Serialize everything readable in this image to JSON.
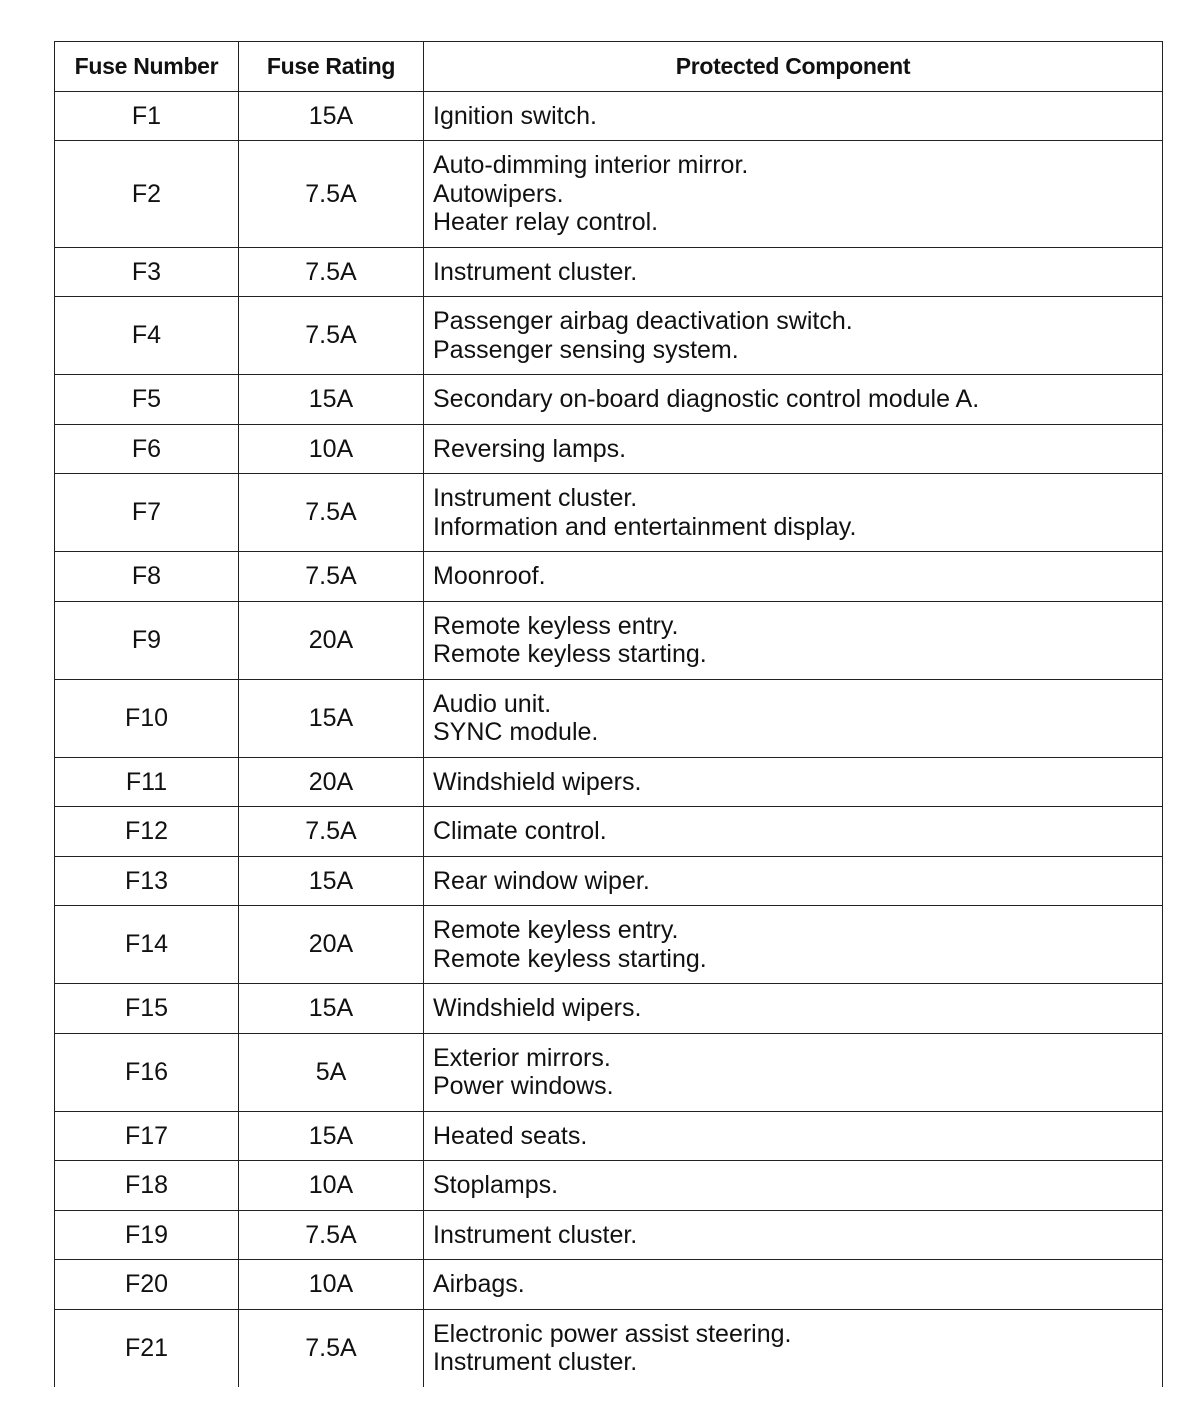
{
  "table": {
    "header": [
      "Fuse Number",
      "Fuse Rating",
      "Protected Component"
    ],
    "rows": [
      {
        "number": "F1",
        "rating": "15A",
        "component": [
          "Ignition switch."
        ]
      },
      {
        "number": "F2",
        "rating": "7.5A",
        "component": [
          "Auto-dimming interior mirror.",
          "Autowipers.",
          "Heater relay control."
        ]
      },
      {
        "number": "F3",
        "rating": "7.5A",
        "component": [
          "Instrument cluster."
        ]
      },
      {
        "number": "F4",
        "rating": "7.5A",
        "component": [
          "Passenger airbag deactivation switch.",
          "Passenger sensing system."
        ]
      },
      {
        "number": "F5",
        "rating": "15A",
        "component": [
          "Secondary on-board diagnostic control module A."
        ]
      },
      {
        "number": "F6",
        "rating": "10A",
        "component": [
          "Reversing lamps."
        ]
      },
      {
        "number": "F7",
        "rating": "7.5A",
        "component": [
          "Instrument cluster.",
          "Information and entertainment display."
        ]
      },
      {
        "number": "F8",
        "rating": "7.5A",
        "component": [
          "Moonroof."
        ]
      },
      {
        "number": "F9",
        "rating": "20A",
        "component": [
          "Remote keyless entry.",
          "Remote keyless starting."
        ]
      },
      {
        "number": "F10",
        "rating": "15A",
        "component": [
          "Audio unit.",
          "SYNC module."
        ]
      },
      {
        "number": "F11",
        "rating": "20A",
        "component": [
          "Windshield wipers."
        ]
      },
      {
        "number": "F12",
        "rating": "7.5A",
        "component": [
          "Climate control."
        ]
      },
      {
        "number": "F13",
        "rating": "15A",
        "component": [
          "Rear window wiper."
        ]
      },
      {
        "number": "F14",
        "rating": "20A",
        "component": [
          "Remote keyless entry.",
          "Remote keyless starting."
        ]
      },
      {
        "number": "F15",
        "rating": "15A",
        "component": [
          "Windshield wipers."
        ]
      },
      {
        "number": "F16",
        "rating": "5A",
        "component": [
          "Exterior mirrors.",
          "Power windows."
        ]
      },
      {
        "number": "F17",
        "rating": "15A",
        "component": [
          "Heated seats."
        ]
      },
      {
        "number": "F18",
        "rating": "10A",
        "component": [
          "Stoplamps."
        ]
      },
      {
        "number": "F19",
        "rating": "7.5A",
        "component": [
          "Instrument cluster."
        ]
      },
      {
        "number": "F20",
        "rating": "10A",
        "component": [
          "Airbags."
        ]
      },
      {
        "number": "F21",
        "rating": "7.5A",
        "component": [
          "Electronic power assist steering.",
          "Instrument cluster."
        ]
      }
    ]
  }
}
